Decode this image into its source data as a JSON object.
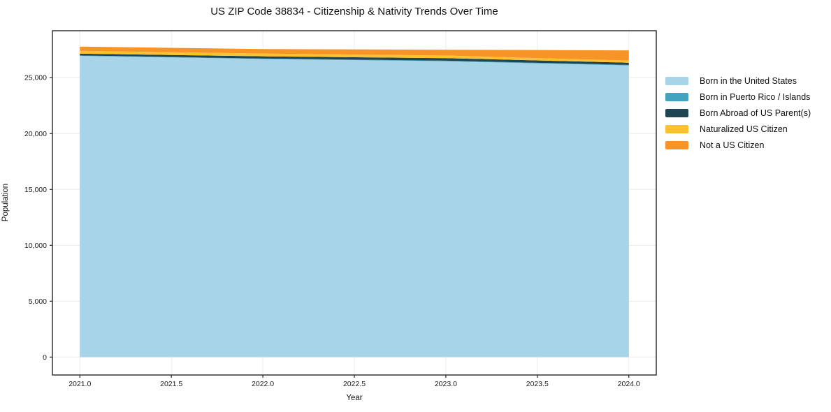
{
  "figure": {
    "background": "#ffffff",
    "spine_color": "#262626",
    "grid_color": "#ececec",
    "tick_label_color": "#1a1a1a"
  },
  "chart_data": {
    "type": "area",
    "stacked": true,
    "title": "US ZIP Code 38834 - Citizenship & Nativity Trends Over Time",
    "xlabel": "Year",
    "ylabel": "Population",
    "x": [
      2021,
      2022,
      2023,
      2024
    ],
    "series": [
      {
        "name": "Born in the United States",
        "color": "#a8d4e8",
        "values": [
          26950,
          26670,
          26470,
          26090
        ]
      },
      {
        "name": "Born in Puerto Rico / Islands",
        "color": "#44a2c1",
        "values": [
          40,
          40,
          50,
          60
        ]
      },
      {
        "name": "Born Abroad of US Parent(s)",
        "color": "#1f4553",
        "values": [
          160,
          200,
          230,
          190
        ]
      },
      {
        "name": "Naturalized US Citizen",
        "color": "#fcc22d",
        "values": [
          250,
          250,
          230,
          190
        ]
      },
      {
        "name": "Not a US Citizen",
        "color": "#f79428",
        "values": [
          380,
          400,
          520,
          910
        ]
      }
    ],
    "xticks": {
      "values": [
        2021.0,
        2021.5,
        2022.0,
        2022.5,
        2023.0,
        2023.5,
        2024.0
      ],
      "labels": [
        "2021.0",
        "2021.5",
        "2022.0",
        "2022.5",
        "2023.0",
        "2023.5",
        "2024.0"
      ]
    },
    "yticks": {
      "values": [
        0,
        5000,
        10000,
        15000,
        20000,
        25000
      ],
      "labels": [
        "0",
        "5,000",
        "10,000",
        "15,000",
        "20,000",
        "25,000"
      ]
    },
    "xlim": [
      2020.85,
      2024.15
    ],
    "ylim": [
      -1600,
      29200
    ],
    "grid": true,
    "legend_position": "right-outside"
  }
}
